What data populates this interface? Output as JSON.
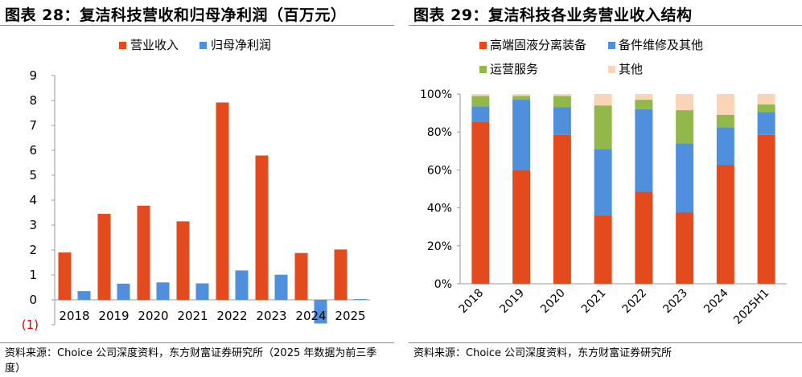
{
  "left": {
    "title": "图表 28：复洁科技营收和归母净利润（百万元）",
    "source": "资料来源：Choice 公司深度资料，东方财富证券研究所（2025 年数据为前三季度）"
  },
  "right": {
    "title": "图表 29：复洁科技各业务营业收入结构",
    "source": "资料来源：Choice 公司深度资料，东方财富证券研究所"
  },
  "chart_data": [
    {
      "type": "bar",
      "categories": [
        "2018",
        "2019",
        "2020",
        "2021",
        "2022",
        "2023",
        "2024",
        "2025"
      ],
      "series": [
        {
          "name": "营业收入",
          "color": "#E34A1E",
          "values": [
            1.9,
            3.45,
            3.78,
            3.15,
            7.92,
            5.79,
            1.88,
            2.02
          ]
        },
        {
          "name": "归母净利润",
          "color": "#4F8FDB",
          "values": [
            0.35,
            0.65,
            0.7,
            0.66,
            1.18,
            1.01,
            -0.95,
            0.03
          ]
        }
      ],
      "ylim": [
        -1,
        9
      ],
      "yticks": [
        -1,
        0,
        1,
        2,
        3,
        4,
        5,
        6,
        7,
        8,
        9
      ],
      "ytick_labels": [
        "(1)",
        "0",
        "1",
        "2",
        "3",
        "4",
        "5",
        "6",
        "7",
        "8",
        "9"
      ],
      "negative_label_color": "#E00000",
      "legend_position": "top-center",
      "grid": false
    },
    {
      "type": "bar",
      "stacked": true,
      "categories": [
        "2018",
        "2019",
        "2020",
        "2021",
        "2022",
        "2023",
        "2024",
        "2025H1"
      ],
      "series": [
        {
          "name": "高端固液分离装备",
          "color": "#E34A1E",
          "values": [
            85.5,
            60,
            78.5,
            36,
            48.5,
            37.5,
            62.5,
            78.5
          ]
        },
        {
          "name": "备件维修及其他",
          "color": "#4F8FDB",
          "values": [
            8,
            37,
            14.5,
            35,
            43.5,
            36.5,
            20,
            12
          ]
        },
        {
          "name": "运营服务",
          "color": "#92B84C",
          "values": [
            5.5,
            2,
            6,
            23,
            5,
            17.5,
            6.5,
            4
          ]
        },
        {
          "name": "其他",
          "color": "#FAD4B6",
          "values": [
            1,
            1,
            1,
            6,
            3,
            8.5,
            11,
            5.5
          ]
        }
      ],
      "ylim": [
        0,
        100
      ],
      "yticks": [
        0,
        20,
        40,
        60,
        80,
        100
      ],
      "ytick_labels": [
        "0%",
        "20%",
        "40%",
        "60%",
        "80%",
        "100%"
      ],
      "legend_position": "top",
      "grid": false
    }
  ]
}
